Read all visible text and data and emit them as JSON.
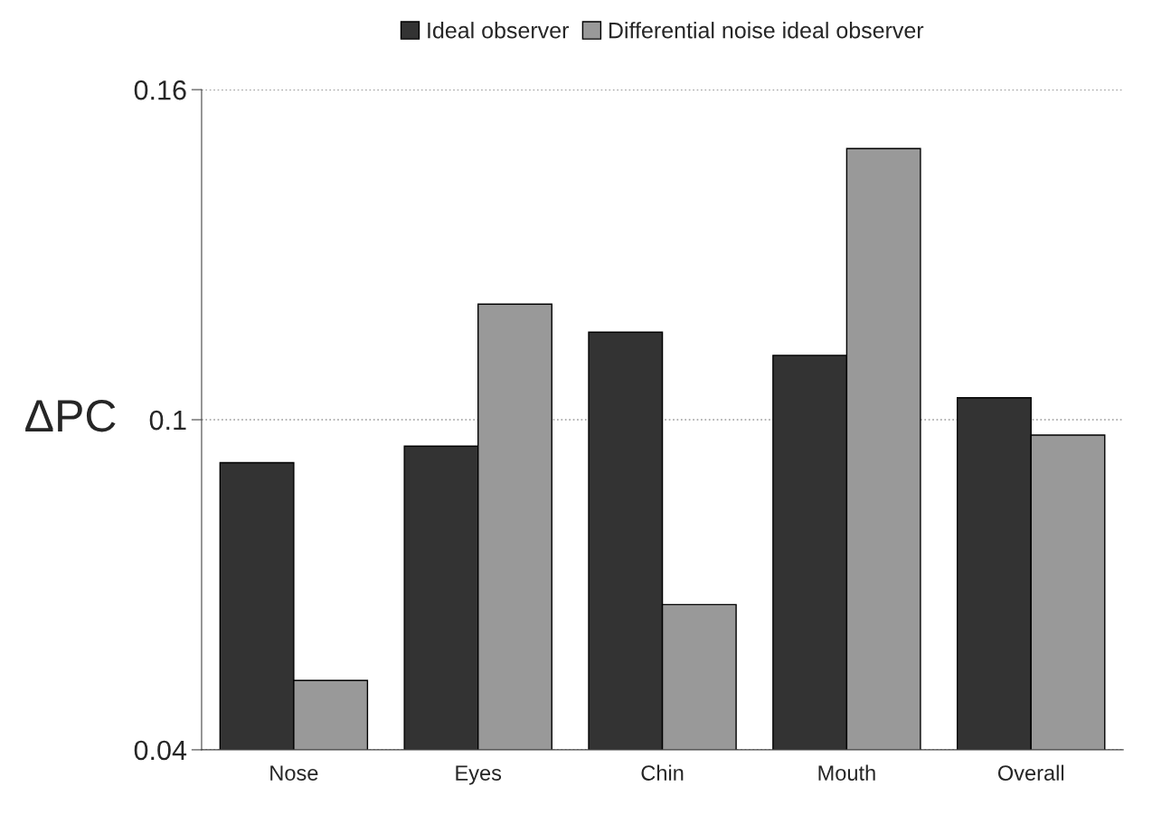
{
  "chart_data": {
    "type": "bar",
    "ylabel": "ΔPC",
    "categories": [
      "Nose",
      "Eyes",
      "Chin",
      "Mouth",
      "Overall"
    ],
    "series": [
      {
        "name": "Ideal observer",
        "color": "#333333",
        "values": [
          0.0922,
          0.0952,
          0.1159,
          0.1117,
          0.104
        ]
      },
      {
        "name": "Differential noise ideal observer",
        "color": "#999999",
        "values": [
          0.0526,
          0.121,
          0.0664,
          0.1493,
          0.0972
        ]
      }
    ],
    "ylim": [
      0.04,
      0.16
    ],
    "yticks": [
      0.04,
      {
        "value": 0.1,
        "label": "0.1"
      },
      0.16
    ],
    "grid": "y",
    "legend": "top"
  }
}
